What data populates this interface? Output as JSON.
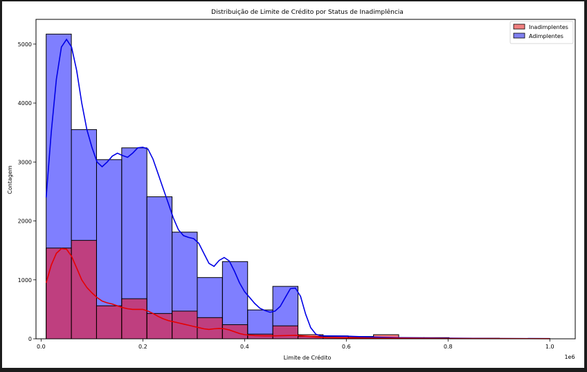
{
  "chart_data": {
    "type": "bar",
    "title": "Distribuição de Limite de Crédito por Status de Inadimplência",
    "xlabel": "Limite de Crédito",
    "ylabel": "Contagem",
    "x_offset_label": "1e6",
    "xlim": [
      -0.01,
      1.05
    ],
    "ylim": [
      0,
      5420
    ],
    "x_ticks": [
      0.0,
      0.2,
      0.4,
      0.6,
      0.8,
      1.0
    ],
    "x_tick_labels": [
      "0.0",
      "0.2",
      "0.4",
      "0.6",
      "0.8",
      "1.0"
    ],
    "y_ticks": [
      0,
      1000,
      2000,
      3000,
      4000,
      5000
    ],
    "y_tick_labels": [
      "0",
      "1000",
      "2000",
      "3000",
      "4000",
      "5000"
    ],
    "grid": false,
    "legend_position": "top-right",
    "series": [
      {
        "name": "Adimplentes",
        "color": "#0000ff",
        "bin_edges": [
          0.01,
          0.0595,
          0.109,
          0.1585,
          0.208,
          0.2575,
          0.307,
          0.3565,
          0.406,
          0.4555,
          0.505,
          0.5545,
          0.604,
          0.6535,
          0.703,
          0.7525,
          0.802,
          0.8515,
          0.901,
          0.9505,
          1.0
        ],
        "counts": [
          5170,
          3550,
          3040,
          3240,
          2410,
          1810,
          1040,
          1310,
          490,
          890,
          40,
          50,
          25,
          20,
          10,
          8,
          5,
          4,
          3,
          3
        ],
        "kde": [
          [
            0.01,
            2400
          ],
          [
            0.02,
            3500
          ],
          [
            0.03,
            4400
          ],
          [
            0.04,
            4950
          ],
          [
            0.05,
            5080
          ],
          [
            0.06,
            4950
          ],
          [
            0.07,
            4550
          ],
          [
            0.08,
            4000
          ],
          [
            0.09,
            3550
          ],
          [
            0.1,
            3250
          ],
          [
            0.11,
            3000
          ],
          [
            0.12,
            2920
          ],
          [
            0.13,
            3000
          ],
          [
            0.14,
            3100
          ],
          [
            0.15,
            3150
          ],
          [
            0.16,
            3110
          ],
          [
            0.17,
            3080
          ],
          [
            0.18,
            3150
          ],
          [
            0.19,
            3240
          ],
          [
            0.2,
            3250
          ],
          [
            0.21,
            3220
          ],
          [
            0.22,
            3050
          ],
          [
            0.23,
            2800
          ],
          [
            0.24,
            2550
          ],
          [
            0.25,
            2300
          ],
          [
            0.26,
            2050
          ],
          [
            0.27,
            1850
          ],
          [
            0.28,
            1750
          ],
          [
            0.29,
            1720
          ],
          [
            0.3,
            1700
          ],
          [
            0.31,
            1620
          ],
          [
            0.32,
            1450
          ],
          [
            0.33,
            1280
          ],
          [
            0.34,
            1230
          ],
          [
            0.35,
            1330
          ],
          [
            0.36,
            1380
          ],
          [
            0.37,
            1320
          ],
          [
            0.38,
            1150
          ],
          [
            0.39,
            950
          ],
          [
            0.4,
            800
          ],
          [
            0.41,
            700
          ],
          [
            0.42,
            600
          ],
          [
            0.43,
            520
          ],
          [
            0.44,
            480
          ],
          [
            0.45,
            450
          ],
          [
            0.46,
            470
          ],
          [
            0.47,
            550
          ],
          [
            0.48,
            700
          ],
          [
            0.49,
            850
          ],
          [
            0.5,
            860
          ],
          [
            0.51,
            720
          ],
          [
            0.52,
            420
          ],
          [
            0.53,
            190
          ],
          [
            0.54,
            80
          ],
          [
            0.55,
            50
          ],
          [
            0.6,
            45
          ],
          [
            0.65,
            30
          ],
          [
            0.7,
            20
          ],
          [
            0.75,
            15
          ],
          [
            0.8,
            10
          ],
          [
            0.9,
            6
          ],
          [
            1.0,
            4
          ]
        ]
      },
      {
        "name": "Inadimplentes",
        "color": "#ff0000",
        "bin_edges": [
          0.01,
          0.0595,
          0.109,
          0.1585,
          0.208,
          0.2575,
          0.307,
          0.3565,
          0.406,
          0.4555,
          0.505,
          0.5545,
          0.604,
          0.6535,
          0.703,
          0.7525,
          0.802,
          0.8515,
          0.901,
          0.9505,
          1.0
        ],
        "counts": [
          1540,
          1670,
          560,
          680,
          430,
          470,
          360,
          240,
          80,
          220,
          70,
          40,
          40,
          70,
          20,
          20,
          10,
          10,
          5,
          5
        ],
        "kde": [
          [
            0.01,
            950
          ],
          [
            0.02,
            1250
          ],
          [
            0.03,
            1450
          ],
          [
            0.04,
            1530
          ],
          [
            0.05,
            1520
          ],
          [
            0.06,
            1400
          ],
          [
            0.07,
            1200
          ],
          [
            0.08,
            1000
          ],
          [
            0.09,
            870
          ],
          [
            0.1,
            780
          ],
          [
            0.11,
            700
          ],
          [
            0.12,
            640
          ],
          [
            0.13,
            610
          ],
          [
            0.14,
            590
          ],
          [
            0.15,
            560
          ],
          [
            0.16,
            530
          ],
          [
            0.17,
            510
          ],
          [
            0.18,
            500
          ],
          [
            0.19,
            500
          ],
          [
            0.2,
            500
          ],
          [
            0.21,
            470
          ],
          [
            0.22,
            430
          ],
          [
            0.23,
            380
          ],
          [
            0.24,
            340
          ],
          [
            0.25,
            310
          ],
          [
            0.26,
            290
          ],
          [
            0.27,
            270
          ],
          [
            0.28,
            250
          ],
          [
            0.29,
            230
          ],
          [
            0.3,
            210
          ],
          [
            0.31,
            190
          ],
          [
            0.32,
            170
          ],
          [
            0.33,
            160
          ],
          [
            0.34,
            170
          ],
          [
            0.35,
            175
          ],
          [
            0.36,
            170
          ],
          [
            0.37,
            150
          ],
          [
            0.38,
            120
          ],
          [
            0.39,
            90
          ],
          [
            0.4,
            70
          ],
          [
            0.42,
            55
          ],
          [
            0.44,
            50
          ],
          [
            0.46,
            50
          ],
          [
            0.48,
            55
          ],
          [
            0.5,
            60
          ],
          [
            0.52,
            45
          ],
          [
            0.54,
            30
          ],
          [
            0.56,
            20
          ],
          [
            0.6,
            15
          ],
          [
            0.65,
            12
          ],
          [
            0.7,
            10
          ],
          [
            0.8,
            6
          ],
          [
            0.9,
            3
          ],
          [
            1.0,
            2
          ]
        ]
      }
    ],
    "legend": [
      {
        "label": "Inadimplentes",
        "color": "#f08080"
      },
      {
        "label": "Adimplentes",
        "color": "#8080f0"
      }
    ]
  }
}
